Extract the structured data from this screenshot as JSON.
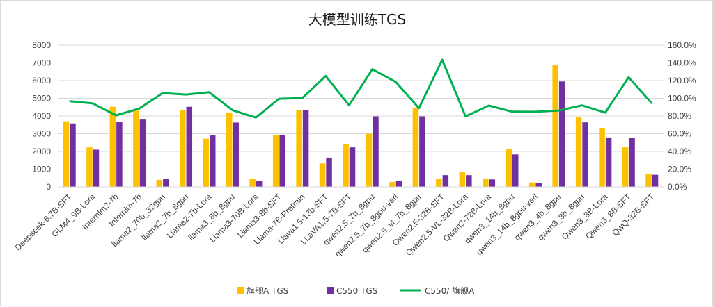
{
  "chart_data": {
    "type": "bar",
    "title": "大模型训练TGS",
    "xlabel": "",
    "ylabel": "",
    "ylim": [
      0,
      8000
    ],
    "y_ticks": [
      0,
      1000,
      2000,
      3000,
      4000,
      5000,
      6000,
      7000,
      8000
    ],
    "y2lim": [
      0,
      160
    ],
    "y2_ticks": [
      "0.0%",
      "20.0%",
      "40.0%",
      "60.0%",
      "80.0%",
      "100.0%",
      "120.0%",
      "140.0%",
      "160.0%"
    ],
    "legend_position": "bottom",
    "categories": [
      "Deepseek-6.7B-SFT",
      "GLM4_9B-Lora",
      "Internlm2-7b",
      "Internlm-7b",
      "llama2_70b_32gpu",
      "llama2_7b_8gpu",
      "Llama2-7b-Lora",
      "llama3_8b_8gpu",
      "Llama3-70B-Lora",
      "Llama3-8b-SFT",
      "Llama-7B-Pretrain",
      "Llava1.5-13b-SFT",
      "LLaVA1.5-7B-SFT",
      "qwen2.5_7b_8gpu",
      "qwen2.5_7b_8gpu-verl",
      "qwen2.5_vl_7b_8gpu",
      "Qwen2.5-32B-SFT",
      "Qwen2.5-VL-32B-Lora",
      "Qwen2-72B-Lora",
      "qwen3_14b_8gpu",
      "qwen3_14b_8gpu-verl",
      "qwen3_4b_8gpu",
      "qwen3_8b_8gpu",
      "Qwen3_8B-Lora",
      "Qwen3_8B-SFT",
      "QwQ-32B-SFT"
    ],
    "series": [
      {
        "name": "旗舰A TGS",
        "type": "bar",
        "axis": "left",
        "color": "#FFC000",
        "values": [
          3700,
          2230,
          4520,
          4300,
          400,
          4320,
          2720,
          4200,
          450,
          2920,
          4330,
          1320,
          2420,
          3000,
          270,
          4480,
          460,
          820,
          460,
          2150,
          250,
          6900,
          3960,
          3330,
          2230,
          720
        ]
      },
      {
        "name": "C550 TGS",
        "type": "bar",
        "axis": "left",
        "color": "#7030A0",
        "values": [
          3580,
          2100,
          3650,
          3800,
          430,
          4520,
          2900,
          3630,
          350,
          2910,
          4350,
          1650,
          2230,
          3980,
          320,
          3980,
          660,
          660,
          420,
          1830,
          220,
          5950,
          3640,
          2790,
          2760,
          680
        ]
      },
      {
        "name": "C550/ 旗舰A",
        "type": "line",
        "axis": "right",
        "color": "#00B050",
        "values": [
          96.8,
          94.2,
          80.8,
          88.4,
          105.9,
          104.2,
          106.8,
          86.5,
          78.3,
          99.5,
          100.3,
          125.2,
          92.1,
          132.8,
          118.6,
          88.8,
          143.5,
          79.5,
          91.8,
          84.9,
          84.8,
          86.2,
          92.0,
          83.8,
          123.8,
          94.2
        ]
      }
    ]
  }
}
